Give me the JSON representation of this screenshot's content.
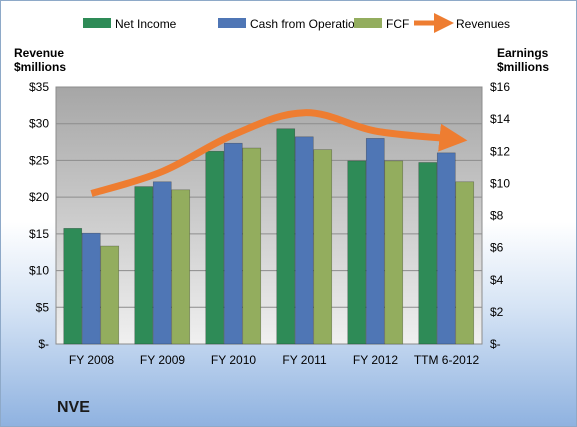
{
  "company": "NVE",
  "colors": {
    "net_income": "#2e8b57",
    "cash_from_operations": "#4f76b5",
    "fcf": "#93ad5e",
    "revenues": "#ee7d31"
  },
  "chart_data": {
    "type": "bar",
    "categories": [
      "FY 2008",
      "FY 2009",
      "FY 2010",
      "FY 2011",
      "FY 2012",
      "TTM 6-2012"
    ],
    "series": [
      {
        "name": "Net Income",
        "values": [
          7.2,
          9.8,
          12.0,
          13.4,
          11.4,
          11.3
        ]
      },
      {
        "name": "Cash from Operations",
        "values": [
          6.9,
          10.1,
          12.5,
          12.9,
          12.8,
          11.9
        ]
      },
      {
        "name": "FCF",
        "values": [
          6.1,
          9.6,
          12.2,
          12.1,
          11.4,
          10.1
        ]
      }
    ],
    "line_series": {
      "name": "Revenues",
      "values": [
        20.5,
        23.5,
        28.5,
        31.5,
        29.0,
        28.0
      ]
    },
    "left_axis": {
      "label_line1": "Revenue",
      "label_line2": "$millions",
      "ylim": [
        0,
        35
      ],
      "ticks": [
        "$-",
        "$5",
        "$10",
        "$15",
        "$20",
        "$25",
        "$30",
        "$35"
      ]
    },
    "right_axis": {
      "label_line1": "Earnings",
      "label_line2": "$millions",
      "ylim": [
        0,
        16
      ],
      "ticks": [
        "$-",
        "$2",
        "$4",
        "$6",
        "$8",
        "$10",
        "$12",
        "$14",
        "$16"
      ]
    },
    "legend": [
      "Net Income",
      "Cash from Operations",
      "FCF",
      "Revenues"
    ],
    "legend_position": "top",
    "grid": true
  }
}
